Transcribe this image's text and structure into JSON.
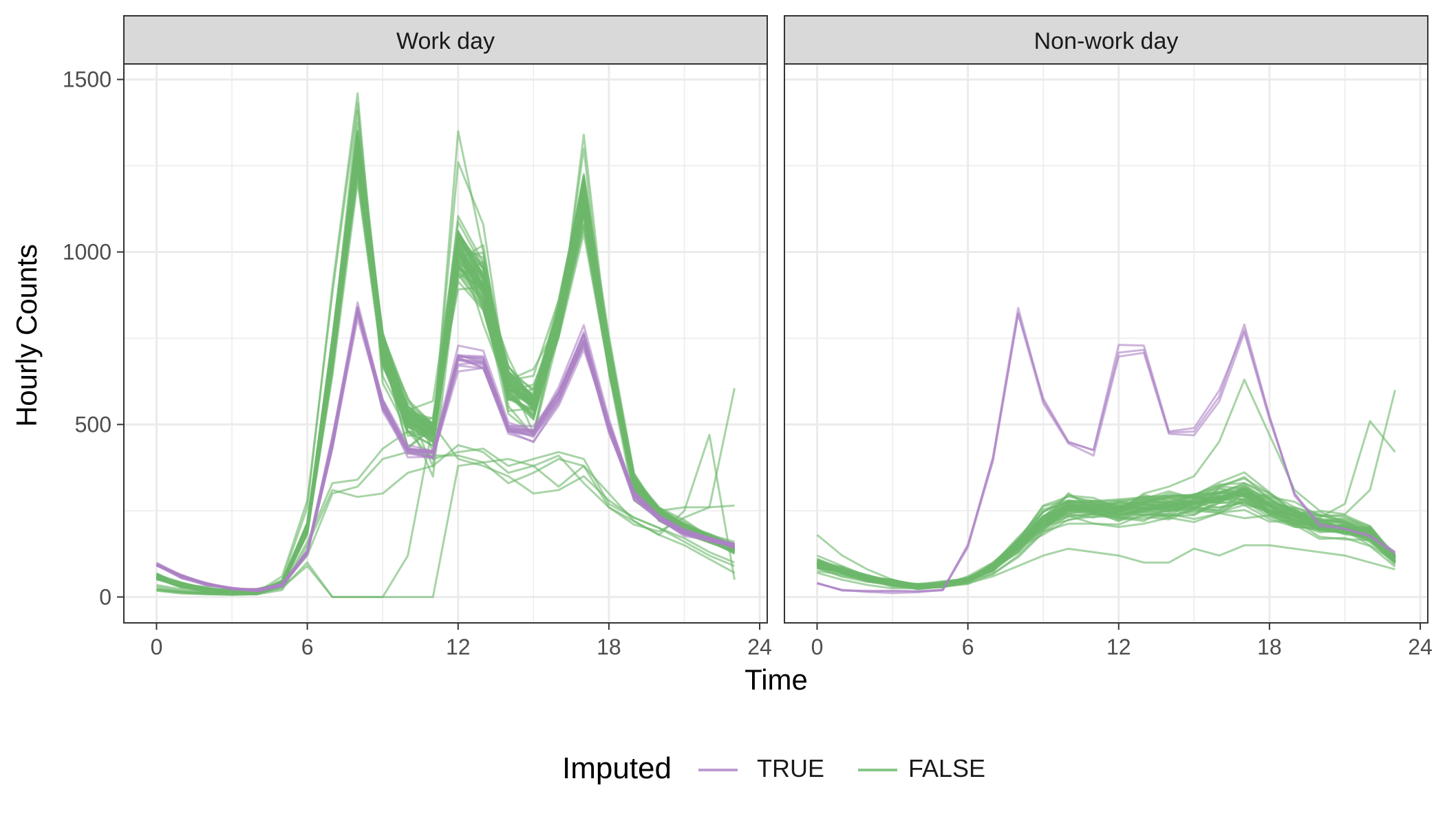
{
  "chart_data": {
    "type": "line",
    "xlabel": "Time",
    "ylabel": "Hourly Counts",
    "xlim": [
      -1.3,
      24.3
    ],
    "ylim": [
      -75,
      1545
    ],
    "x_ticks": [
      "0",
      "6",
      "12",
      "18",
      "24"
    ],
    "y_ticks": [
      "0",
      "500",
      "1000",
      "1500"
    ],
    "grid": true,
    "legend": {
      "title": "Imputed",
      "position": "bottom",
      "entries": [
        {
          "label": "TRUE",
          "color": "#ab82c5"
        },
        {
          "label": "FALSE",
          "color": "#6cb86a"
        }
      ]
    },
    "colors": {
      "imputed_true": "#ab82c5",
      "imputed_false": "#6cb86a"
    },
    "x": [
      0,
      1,
      2,
      3,
      4,
      5,
      6,
      7,
      8,
      9,
      10,
      11,
      12,
      13,
      14,
      15,
      16,
      17,
      18,
      19,
      20,
      21,
      22,
      23
    ],
    "panels": [
      {
        "title": "Work day",
        "false_base": [
          60,
          35,
          20,
          15,
          15,
          40,
          200,
          700,
          1300,
          720,
          520,
          480,
          1000,
          900,
          620,
          560,
          800,
          1150,
          700,
          330,
          240,
          200,
          170,
          140
        ],
        "true_base": [
          95,
          60,
          38,
          25,
          20,
          35,
          130,
          450,
          840,
          560,
          430,
          420,
          700,
          690,
          490,
          480,
          590,
          760,
          500,
          300,
          230,
          190,
          170,
          150
        ],
        "false_outliers": [
          [
            20,
            12,
            8,
            8,
            10,
            30,
            160,
            330,
            340,
            430,
            480,
            400,
            420,
            430,
            380,
            400,
            420,
            400,
            270,
            230,
            200,
            160,
            120,
            90
          ],
          [
            25,
            15,
            10,
            8,
            8,
            20,
            150,
            310,
            290,
            300,
            360,
            380,
            440,
            420,
            360,
            380,
            410,
            330,
            260,
            220,
            180,
            150,
            110,
            70
          ],
          [
            30,
            18,
            12,
            10,
            10,
            25,
            100,
            0,
            0,
            0,
            120,
            500,
            400,
            380,
            350,
            300,
            310,
            350,
            280,
            230,
            200,
            170,
            130,
            100
          ],
          [
            22,
            14,
            9,
            7,
            8,
            28,
            90,
            0,
            0,
            0,
            0,
            0,
            380,
            390,
            400,
            380,
            320,
            380,
            300,
            220,
            180,
            250,
            470,
            50
          ],
          [
            18,
            10,
            8,
            6,
            8,
            35,
            120,
            300,
            320,
            400,
            420,
            410,
            410,
            390,
            330,
            360,
            400,
            380,
            260,
            210,
            190,
            230,
            260,
            605
          ]
        ],
        "highlight_false": [
          [
            20,
            15,
            10,
            10,
            12,
            50,
            260,
            900,
            1460,
            640,
            500,
            470,
            1260,
            1080,
            600,
            520,
            780,
            1300,
            650,
            280,
            230,
            200,
            180,
            160
          ],
          [
            35,
            22,
            14,
            12,
            14,
            60,
            280,
            880,
            1430,
            620,
            480,
            460,
            1350,
            1000,
            640,
            540,
            760,
            1340,
            700,
            300,
            250,
            260,
            260,
            265
          ]
        ],
        "false_count": 60,
        "true_count": 14,
        "false_jitter": [
          10,
          0.09,
          45
        ],
        "true_jitter": [
          6,
          0.07,
          25
        ]
      },
      {
        "title": "Non-work day",
        "false_base": [
          95,
          75,
          55,
          40,
          30,
          35,
          50,
          85,
          150,
          220,
          260,
          255,
          250,
          260,
          265,
          270,
          285,
          300,
          260,
          230,
          210,
          200,
          180,
          110
        ],
        "true_base": [
          40,
          20,
          15,
          15,
          15,
          20,
          150,
          400,
          830,
          570,
          450,
          420,
          720,
          725,
          480,
          480,
          590,
          780,
          520,
          300,
          210,
          200,
          180,
          130
        ],
        "false_outliers": [
          [
            180,
            120,
            80,
            50,
            30,
            35,
            50,
            90,
            150,
            200,
            250,
            240,
            230,
            220,
            260,
            270,
            300,
            330,
            300,
            260,
            230,
            270,
            510,
            420
          ],
          [
            120,
            90,
            60,
            40,
            30,
            35,
            60,
            100,
            160,
            220,
            240,
            230,
            250,
            300,
            320,
            350,
            450,
            630,
            470,
            310,
            250,
            240,
            310,
            600
          ],
          [
            70,
            50,
            35,
            25,
            25,
            30,
            40,
            60,
            90,
            120,
            140,
            130,
            120,
            100,
            100,
            140,
            120,
            150,
            150,
            140,
            130,
            120,
            100,
            80
          ]
        ],
        "highlight_false": [],
        "false_count": 45,
        "true_count": 3,
        "false_jitter": [
          9,
          0.2,
          35
        ],
        "true_jitter": [
          5,
          0.05,
          15
        ]
      }
    ]
  }
}
